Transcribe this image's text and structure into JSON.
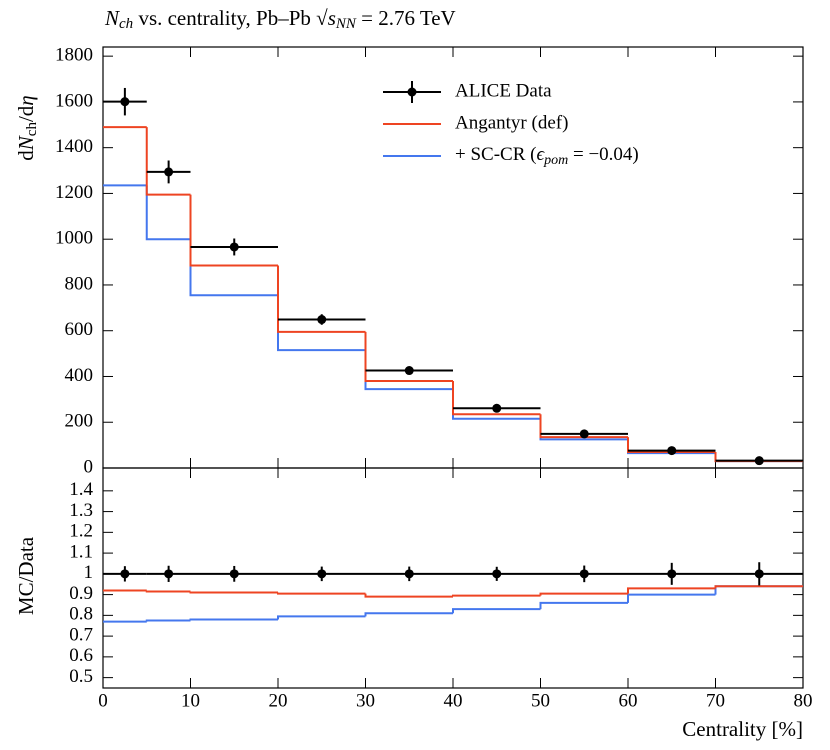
{
  "chart_data": [
    {
      "type": "step",
      "title": [
        "N",
        "ch",
        " vs. centrality, Pb–Pb √",
        "s",
        "NN",
        " = 2.76 TeV"
      ],
      "ylabel": [
        "d",
        "N",
        "ch",
        "/d",
        "η"
      ],
      "bins": [
        0,
        5,
        10,
        20,
        30,
        40,
        50,
        60,
        70,
        80
      ],
      "x": [
        2.5,
        7.5,
        15,
        25,
        35,
        45,
        55,
        65,
        75
      ],
      "xlim": [
        0,
        80
      ],
      "xticks": [
        0,
        10,
        20,
        30,
        40,
        50,
        60,
        70,
        80
      ],
      "ylim": [
        0,
        1840
      ],
      "yticks": [
        0,
        200,
        400,
        600,
        800,
        1000,
        1200,
        1400,
        1600,
        1800
      ],
      "series": [
        {
          "name": [
            "ALICE Data"
          ],
          "color": "#000000",
          "values": [
            1601,
            1294,
            966,
            649,
            426,
            261,
            149,
            76,
            32
          ],
          "errors": [
            60,
            50,
            37,
            23,
            15,
            9,
            6,
            4,
            1.8
          ]
        },
        {
          "name": [
            "Angantyr (def)"
          ],
          "color": "#ee4422",
          "values": [
            1490,
            1195,
            885,
            595,
            380,
            235,
            135,
            70,
            30
          ]
        },
        {
          "name": [
            "+ SC-CR (",
            "ϵ",
            "pom",
            " = −0.04)"
          ],
          "color": "#4477ee",
          "values": [
            1235,
            1000,
            755,
            515,
            345,
            215,
            125,
            65,
            30
          ]
        }
      ]
    },
    {
      "type": "step",
      "ylabel": "MC/Data",
      "xlabel": "Centrality [%]",
      "bins": [
        0,
        5,
        10,
        20,
        30,
        40,
        50,
        60,
        70,
        80
      ],
      "x": [
        2.5,
        7.5,
        15,
        25,
        35,
        45,
        55,
        65,
        75
      ],
      "xlim": [
        0,
        80
      ],
      "xticks": [
        0,
        10,
        20,
        30,
        40,
        50,
        60,
        70,
        80
      ],
      "ylim": [
        0.45,
        1.51
      ],
      "yticks": [
        0.5,
        0.6,
        0.7,
        0.8,
        0.9,
        1,
        1.1,
        1.2,
        1.3,
        1.4
      ],
      "series": [
        {
          "color": "#000000",
          "values": [
            1,
            1,
            1,
            1,
            1,
            1,
            1,
            1,
            1
          ],
          "errors": [
            0.037,
            0.039,
            0.038,
            0.035,
            0.035,
            0.034,
            0.04,
            0.053,
            0.056
          ]
        },
        {
          "color": "#ee4422",
          "values": [
            0.92,
            0.915,
            0.91,
            0.905,
            0.89,
            0.895,
            0.905,
            0.93,
            0.94
          ]
        },
        {
          "color": "#4477ee",
          "values": [
            0.77,
            0.775,
            0.78,
            0.795,
            0.81,
            0.83,
            0.86,
            0.9,
            0.94
          ]
        }
      ]
    }
  ]
}
